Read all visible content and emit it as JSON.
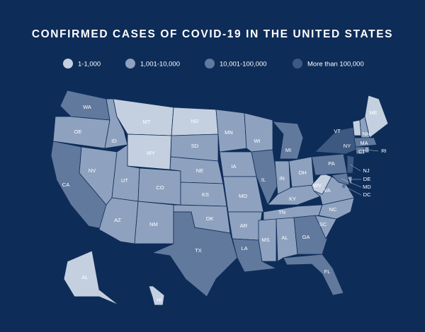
{
  "title": "CONFIRMED CASES OF COVID-19 IN THE UNITED STATES",
  "legend": [
    {
      "label": "1-1,000",
      "color": "#c4d0df"
    },
    {
      "label": "1,001-10,000",
      "color": "#8ea2bf"
    },
    {
      "label": "10,001-100,000",
      "color": "#61799c"
    },
    {
      "label": "More than 100,000",
      "color": "#3d5881"
    }
  ],
  "states": [
    {
      "label": "WA",
      "category": 2
    },
    {
      "label": "OE",
      "category": 1
    },
    {
      "label": "CA",
      "category": 2
    },
    {
      "label": "ID",
      "category": 1
    },
    {
      "label": "NV",
      "category": 1
    },
    {
      "label": "MT",
      "category": 0
    },
    {
      "label": "WY",
      "category": 0
    },
    {
      "label": "UT",
      "category": 1
    },
    {
      "label": "CO",
      "category": 1
    },
    {
      "label": "AZ",
      "category": 1
    },
    {
      "label": "NM",
      "category": 1
    },
    {
      "label": "ND",
      "category": 0
    },
    {
      "label": "SD",
      "category": 1
    },
    {
      "label": "NE",
      "category": 1
    },
    {
      "label": "KS",
      "category": 1
    },
    {
      "label": "OK",
      "category": 1
    },
    {
      "label": "TX",
      "category": 2
    },
    {
      "label": "MN",
      "category": 1
    },
    {
      "label": "IA",
      "category": 1
    },
    {
      "label": "MO",
      "category": 1
    },
    {
      "label": "AR",
      "category": 1
    },
    {
      "label": "LA",
      "category": 2
    },
    {
      "label": "WI",
      "category": 1
    },
    {
      "label": "IL",
      "category": 2
    },
    {
      "label": "MI",
      "category": 2
    },
    {
      "label": "IN",
      "category": 1
    },
    {
      "label": "OH",
      "category": 1
    },
    {
      "label": "KY",
      "category": 1
    },
    {
      "label": "TN",
      "category": 1
    },
    {
      "label": "MS",
      "category": 1
    },
    {
      "label": "AL",
      "category": 1
    },
    {
      "label": "GA",
      "category": 2
    },
    {
      "label": "FL",
      "category": 2
    },
    {
      "label": "SC",
      "category": 1
    },
    {
      "label": "NC",
      "category": 1
    },
    {
      "label": "VA",
      "category": 1
    },
    {
      "label": "WV",
      "category": 0
    },
    {
      "label": "PA",
      "category": 2
    },
    {
      "label": "NY",
      "category": 3
    },
    {
      "label": "NJ",
      "category": 3
    },
    {
      "label": "DE",
      "category": 1
    },
    {
      "label": "MD",
      "category": 2
    },
    {
      "label": "DC",
      "category": 1
    },
    {
      "label": "VT",
      "category": 0
    },
    {
      "label": "NH",
      "category": 1
    },
    {
      "label": "ME",
      "category": 0
    },
    {
      "label": "MA",
      "category": 2
    },
    {
      "label": "CT",
      "category": 2
    },
    {
      "label": "RI",
      "category": 1
    },
    {
      "label": "AL",
      "category": 0
    },
    {
      "label": "HI",
      "category": 0
    }
  ]
}
